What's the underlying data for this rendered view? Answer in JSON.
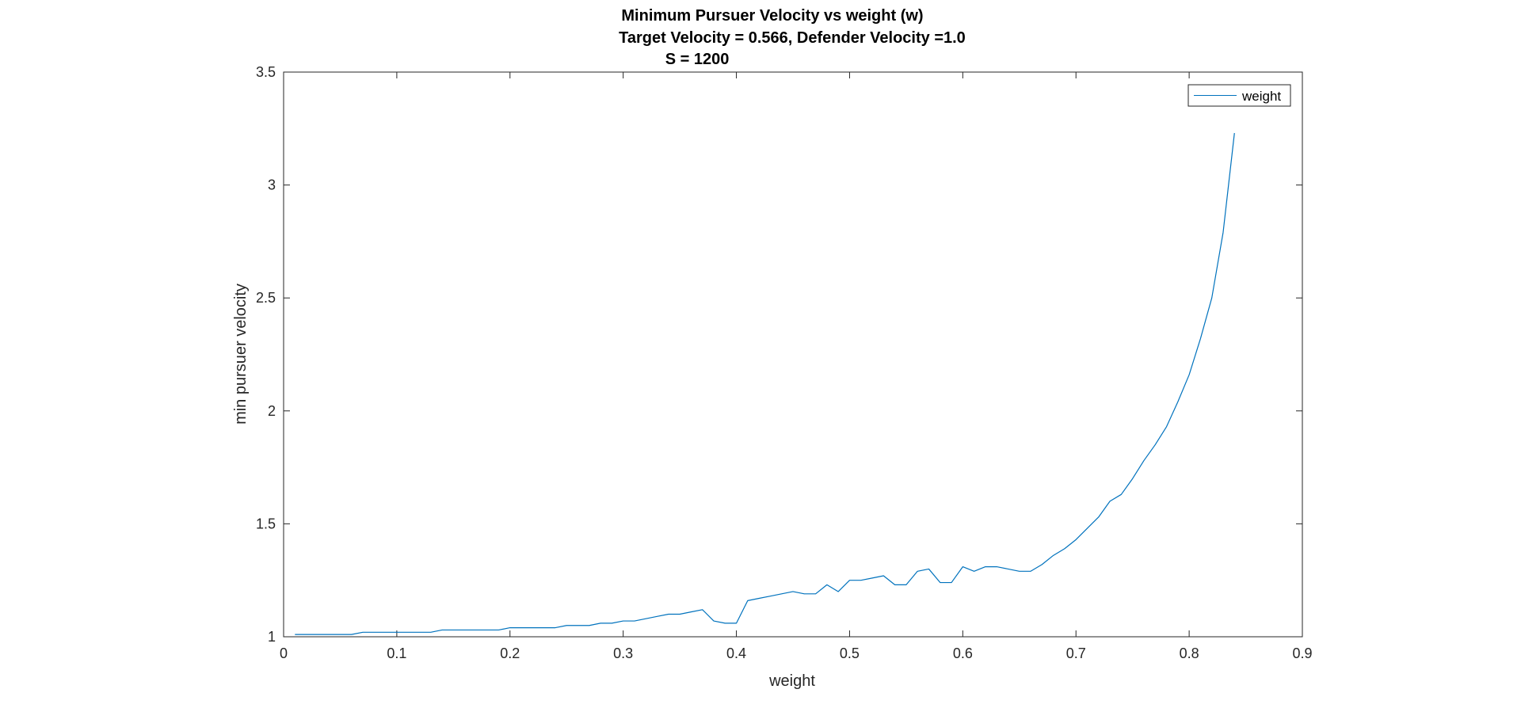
{
  "chart_data": {
    "type": "line",
    "title_lines": [
      "Minimum Pursuer Velocity vs weight (w)",
      "Target Velocity = 0.566, Defender Velocity =1.0",
      "S = 1200"
    ],
    "xlabel": "weight",
    "ylabel": "min pursuer velocity",
    "xlim": [
      0,
      0.9
    ],
    "ylim": [
      1,
      3.5
    ],
    "xticks": [
      0,
      0.1,
      0.2,
      0.3,
      0.4,
      0.5,
      0.6,
      0.7,
      0.8,
      0.9
    ],
    "xtick_labels": [
      "0",
      "0.1",
      "0.2",
      "0.3",
      "0.4",
      "0.5",
      "0.6",
      "0.7",
      "0.8",
      "0.9"
    ],
    "yticks": [
      1,
      1.5,
      2,
      2.5,
      3,
      3.5
    ],
    "ytick_labels": [
      "1",
      "1.5",
      "2",
      "2.5",
      "3",
      "3.5"
    ],
    "grid": false,
    "box": true,
    "legend_position": "top-right",
    "series": [
      {
        "name": "weight",
        "color": "#0072BD",
        "x": [
          0.01,
          0.02,
          0.03,
          0.04,
          0.05,
          0.06,
          0.07,
          0.08,
          0.09,
          0.1,
          0.11,
          0.12,
          0.13,
          0.14,
          0.15,
          0.16,
          0.17,
          0.18,
          0.19,
          0.2,
          0.21,
          0.22,
          0.23,
          0.24,
          0.25,
          0.26,
          0.27,
          0.28,
          0.29,
          0.3,
          0.31,
          0.32,
          0.33,
          0.34,
          0.35,
          0.36,
          0.37,
          0.38,
          0.39,
          0.4,
          0.41,
          0.42,
          0.43,
          0.44,
          0.45,
          0.46,
          0.47,
          0.48,
          0.49,
          0.5,
          0.51,
          0.52,
          0.53,
          0.54,
          0.55,
          0.56,
          0.57,
          0.58,
          0.59,
          0.6,
          0.61,
          0.62,
          0.63,
          0.64,
          0.65,
          0.66,
          0.67,
          0.68,
          0.69,
          0.7,
          0.71,
          0.72,
          0.73,
          0.74,
          0.75,
          0.76,
          0.77,
          0.78,
          0.79,
          0.8,
          0.81,
          0.82,
          0.83,
          0.84
        ],
        "y": [
          1.01,
          1.01,
          1.01,
          1.01,
          1.01,
          1.01,
          1.02,
          1.02,
          1.02,
          1.02,
          1.02,
          1.02,
          1.02,
          1.03,
          1.03,
          1.03,
          1.03,
          1.03,
          1.03,
          1.04,
          1.04,
          1.04,
          1.04,
          1.04,
          1.05,
          1.05,
          1.05,
          1.06,
          1.06,
          1.07,
          1.07,
          1.08,
          1.09,
          1.1,
          1.1,
          1.11,
          1.12,
          1.07,
          1.06,
          1.06,
          1.16,
          1.17,
          1.18,
          1.19,
          1.2,
          1.19,
          1.19,
          1.23,
          1.2,
          1.25,
          1.25,
          1.26,
          1.27,
          1.23,
          1.23,
          1.29,
          1.3,
          1.24,
          1.24,
          1.31,
          1.29,
          1.31,
          1.31,
          1.3,
          1.29,
          1.29,
          1.32,
          1.36,
          1.39,
          1.43,
          1.48,
          1.53,
          1.6,
          1.63,
          1.7,
          1.78,
          1.85,
          1.93,
          2.04,
          2.16,
          2.32,
          2.5,
          2.79,
          3.23
        ]
      }
    ]
  }
}
